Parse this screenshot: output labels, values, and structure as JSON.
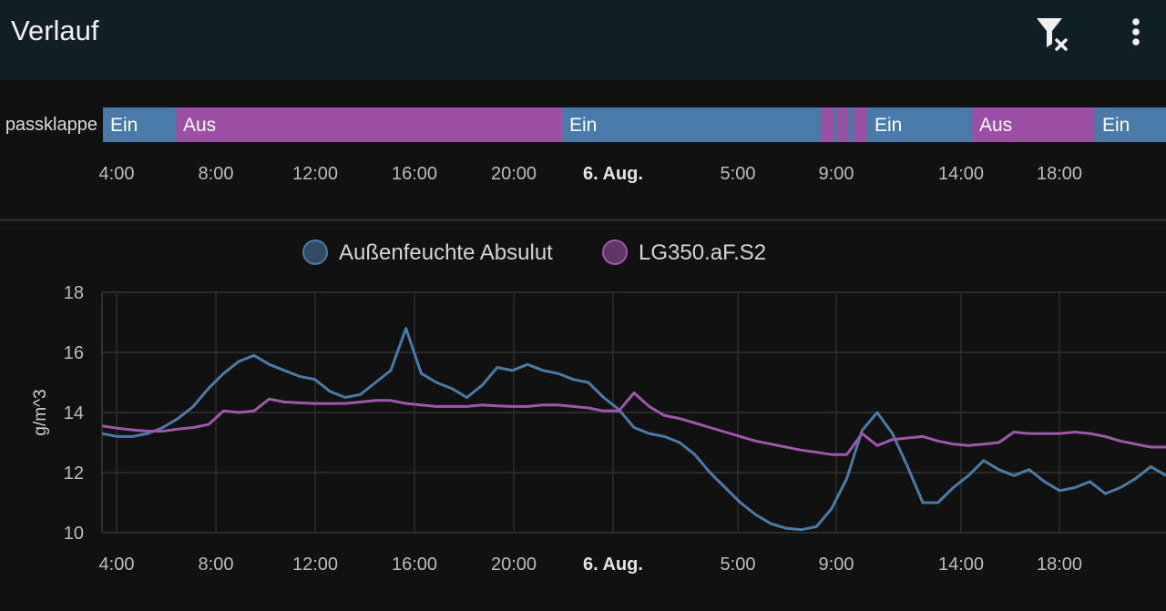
{
  "app_bar": {
    "title": "Verlauf",
    "icons": {
      "filter_clear": "filter-remove-icon",
      "menu": "dots-vertical-icon"
    }
  },
  "timeline": {
    "entity_label": "passklappe",
    "colors": {
      "Ein": "#4a7ba8",
      "Aus": "#9b4fa5"
    },
    "segments": [
      {
        "state": "Ein",
        "label": "Ein"
      },
      {
        "state": "Aus",
        "label": "Aus"
      },
      {
        "state": "Ein",
        "label": "Ein"
      },
      {
        "state": "Aus",
        "label": ""
      },
      {
        "state": "Ein",
        "label": ""
      },
      {
        "state": "Aus",
        "label": ""
      },
      {
        "state": "Ein",
        "label": ""
      },
      {
        "state": "Aus",
        "label": ""
      },
      {
        "state": "Ein",
        "label": "Ein"
      },
      {
        "state": "Aus",
        "label": "Aus"
      },
      {
        "state": "Ein",
        "label": "Ein"
      }
    ],
    "ticks": [
      {
        "label": "4:00",
        "bold": false
      },
      {
        "label": "8:00",
        "bold": false
      },
      {
        "label": "12:00",
        "bold": false
      },
      {
        "label": "16:00",
        "bold": false
      },
      {
        "label": "20:00",
        "bold": false
      },
      {
        "label": "6. Aug.",
        "bold": true
      },
      {
        "label": "5:00",
        "bold": false
      },
      {
        "label": "9:00",
        "bold": false
      },
      {
        "label": "14:00",
        "bold": false
      },
      {
        "label": "18:00",
        "bold": false
      }
    ]
  },
  "chart_data": {
    "type": "line",
    "title": "",
    "xlabel": "",
    "ylabel": "g/m^3",
    "ylim": [
      10,
      18
    ],
    "yticks": [
      "10",
      "12",
      "14",
      "16",
      "18"
    ],
    "xticks": [
      {
        "label": "4:00",
        "bold": false
      },
      {
        "label": "8:00",
        "bold": false
      },
      {
        "label": "12:00",
        "bold": false
      },
      {
        "label": "16:00",
        "bold": false
      },
      {
        "label": "20:00",
        "bold": false
      },
      {
        "label": "6. Aug.",
        "bold": true
      },
      {
        "label": "5:00",
        "bold": false
      },
      {
        "label": "9:00",
        "bold": false
      },
      {
        "label": "14:00",
        "bold": false
      },
      {
        "label": "18:00",
        "bold": false
      }
    ],
    "grid": true,
    "legend": "top-center",
    "series": [
      {
        "name": "Außenfeuchte Absulut",
        "color": "#4a7ba8",
        "y": [
          13.3,
          13.2,
          13.2,
          13.3,
          13.5,
          13.8,
          14.2,
          14.8,
          15.3,
          15.7,
          15.9,
          15.6,
          15.4,
          15.2,
          15.1,
          14.7,
          14.5,
          14.6,
          15.0,
          15.4,
          16.8,
          15.3,
          15.0,
          14.8,
          14.5,
          14.9,
          15.5,
          15.4,
          15.6,
          15.4,
          15.3,
          15.1,
          15.0,
          14.5,
          14.1,
          13.5,
          13.3,
          13.2,
          13.0,
          12.6,
          12.0,
          11.5,
          11.0,
          10.6,
          10.3,
          10.15,
          10.1,
          10.2,
          10.8,
          11.8,
          13.4,
          14.0,
          13.3,
          12.2,
          11.0,
          11.0,
          11.5,
          11.9,
          12.4,
          12.1,
          11.9,
          12.1,
          11.7,
          11.4,
          11.5,
          11.7,
          11.3,
          11.5,
          11.8,
          12.2,
          11.9
        ]
      },
      {
        "name": "LG350.aF.S2",
        "color": "#a056ad",
        "y": [
          13.55,
          13.48,
          13.42,
          13.38,
          13.38,
          13.45,
          13.5,
          13.6,
          14.05,
          14.0,
          14.05,
          14.45,
          14.35,
          14.32,
          14.3,
          14.3,
          14.3,
          14.35,
          14.4,
          14.4,
          14.3,
          14.25,
          14.2,
          14.2,
          14.2,
          14.25,
          14.22,
          14.2,
          14.2,
          14.25,
          14.25,
          14.2,
          14.15,
          14.05,
          14.05,
          14.65,
          14.2,
          13.9,
          13.8,
          13.65,
          13.5,
          13.35,
          13.2,
          13.05,
          12.95,
          12.85,
          12.75,
          12.68,
          12.6,
          12.6,
          13.3,
          12.9,
          13.1,
          13.15,
          13.2,
          13.05,
          12.95,
          12.9,
          12.95,
          13.0,
          13.35,
          13.3,
          13.3,
          13.3,
          13.35,
          13.3,
          13.2,
          13.05,
          12.95,
          12.85,
          12.85
        ]
      }
    ]
  }
}
